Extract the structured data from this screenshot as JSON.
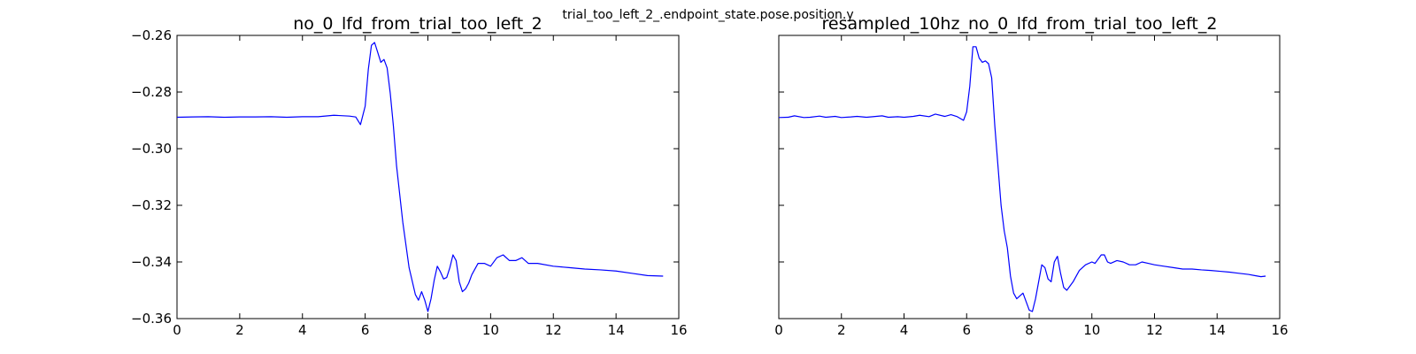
{
  "figure": {
    "suptitle": "trial_too_left_2_.endpoint_state.pose.position.y"
  },
  "chart_data": [
    {
      "type": "line",
      "title": "no_0_lfd_from_trial_too_left_2",
      "xlabel": "",
      "ylabel": "",
      "xlim": [
        0,
        16
      ],
      "ylim": [
        -0.36,
        -0.26
      ],
      "xticks": [
        0,
        2,
        4,
        6,
        8,
        10,
        12,
        14,
        16
      ],
      "yticks": [
        -0.26,
        -0.28,
        -0.3,
        -0.32,
        -0.34,
        -0.36
      ],
      "xtick_labels": [
        "0",
        "2",
        "4",
        "6",
        "8",
        "10",
        "12",
        "14",
        "16"
      ],
      "ytick_labels": [
        "−0.26",
        "−0.28",
        "−0.30",
        "−0.32",
        "−0.34",
        "−0.36"
      ],
      "grid": false,
      "legend": "none",
      "color": "#0000ff",
      "series": [
        {
          "x": [
            0,
            0.5,
            1,
            1.5,
            2,
            2.5,
            3,
            3.5,
            4,
            4.5,
            5,
            5.5,
            5.7,
            5.85,
            6.0,
            6.1,
            6.2,
            6.3,
            6.4,
            6.5,
            6.6,
            6.7,
            6.8,
            6.9,
            7.0,
            7.2,
            7.4,
            7.6,
            7.7,
            7.8,
            7.9,
            8.0,
            8.1,
            8.2,
            8.3,
            8.4,
            8.5,
            8.6,
            8.7,
            8.8,
            8.9,
            9.0,
            9.1,
            9.2,
            9.3,
            9.4,
            9.6,
            9.8,
            10.0,
            10.2,
            10.4,
            10.6,
            10.8,
            11.0,
            11.2,
            11.5,
            12,
            12.5,
            13,
            13.5,
            14,
            14.5,
            15,
            15.5
          ],
          "y": [
            -0.2889,
            -0.2888,
            -0.2887,
            -0.2889,
            -0.2888,
            -0.2888,
            -0.2887,
            -0.2889,
            -0.2887,
            -0.2887,
            -0.2882,
            -0.2885,
            -0.2888,
            -0.2915,
            -0.285,
            -0.272,
            -0.2635,
            -0.2625,
            -0.266,
            -0.2695,
            -0.2685,
            -0.2715,
            -0.2805,
            -0.292,
            -0.306,
            -0.326,
            -0.342,
            -0.3515,
            -0.3535,
            -0.3505,
            -0.3535,
            -0.3575,
            -0.353,
            -0.3465,
            -0.3415,
            -0.3435,
            -0.346,
            -0.3455,
            -0.342,
            -0.3375,
            -0.3395,
            -0.347,
            -0.3505,
            -0.3495,
            -0.3475,
            -0.3445,
            -0.3405,
            -0.3405,
            -0.3415,
            -0.3385,
            -0.3375,
            -0.3395,
            -0.3395,
            -0.3385,
            -0.3405,
            -0.3405,
            -0.3415,
            -0.342,
            -0.3425,
            -0.3428,
            -0.3432,
            -0.344,
            -0.3448,
            -0.345
          ]
        }
      ]
    },
    {
      "type": "line",
      "title": "resampled_10hz_no_0_lfd_from_trial_too_left_2",
      "xlabel": "",
      "ylabel": "",
      "xlim": [
        0,
        16
      ],
      "ylim": [
        -0.36,
        -0.26
      ],
      "xticks": [
        0,
        2,
        4,
        6,
        8,
        10,
        12,
        14,
        16
      ],
      "yticks": [
        -0.26,
        -0.28,
        -0.3,
        -0.32,
        -0.34,
        -0.36
      ],
      "xtick_labels": [
        "0",
        "2",
        "4",
        "6",
        "8",
        "10",
        "12",
        "14",
        "16"
      ],
      "grid": false,
      "legend": "none",
      "color": "#0000ff",
      "series": [
        {
          "x": [
            0,
            0.3,
            0.5,
            0.8,
            1.0,
            1.3,
            1.5,
            1.8,
            2.0,
            2.3,
            2.5,
            2.8,
            3.0,
            3.3,
            3.5,
            3.8,
            4.0,
            4.3,
            4.5,
            4.8,
            5.0,
            5.3,
            5.5,
            5.7,
            5.9,
            6.0,
            6.1,
            6.2,
            6.3,
            6.4,
            6.5,
            6.6,
            6.7,
            6.8,
            6.9,
            7.0,
            7.1,
            7.2,
            7.3,
            7.4,
            7.5,
            7.6,
            7.8,
            7.9,
            8.0,
            8.1,
            8.2,
            8.3,
            8.4,
            8.5,
            8.6,
            8.7,
            8.8,
            8.9,
            9.0,
            9.1,
            9.2,
            9.4,
            9.6,
            9.8,
            10.0,
            10.1,
            10.2,
            10.3,
            10.4,
            10.5,
            10.6,
            10.8,
            11.0,
            11.2,
            11.4,
            11.6,
            11.8,
            12.0,
            12.3,
            12.6,
            12.9,
            13.2,
            13.5,
            13.8,
            14.1,
            14.4,
            14.7,
            15.0,
            15.2,
            15.4,
            15.55
          ],
          "y": [
            -0.289,
            -0.2889,
            -0.2884,
            -0.289,
            -0.2889,
            -0.2885,
            -0.2889,
            -0.2886,
            -0.289,
            -0.2888,
            -0.2886,
            -0.2889,
            -0.2887,
            -0.2884,
            -0.2889,
            -0.2887,
            -0.2889,
            -0.2886,
            -0.2882,
            -0.2887,
            -0.2878,
            -0.2886,
            -0.288,
            -0.2887,
            -0.29,
            -0.287,
            -0.278,
            -0.264,
            -0.264,
            -0.268,
            -0.2695,
            -0.269,
            -0.27,
            -0.275,
            -0.292,
            -0.306,
            -0.32,
            -0.329,
            -0.335,
            -0.345,
            -0.351,
            -0.353,
            -0.351,
            -0.354,
            -0.357,
            -0.3575,
            -0.353,
            -0.347,
            -0.341,
            -0.342,
            -0.346,
            -0.347,
            -0.34,
            -0.338,
            -0.344,
            -0.349,
            -0.35,
            -0.347,
            -0.343,
            -0.341,
            -0.34,
            -0.3405,
            -0.339,
            -0.3375,
            -0.3375,
            -0.34,
            -0.3405,
            -0.3395,
            -0.34,
            -0.341,
            -0.341,
            -0.34,
            -0.3405,
            -0.341,
            -0.3415,
            -0.342,
            -0.3425,
            -0.3425,
            -0.3428,
            -0.343,
            -0.3433,
            -0.3436,
            -0.344,
            -0.3444,
            -0.3448,
            -0.3452,
            -0.345
          ]
        }
      ]
    }
  ]
}
